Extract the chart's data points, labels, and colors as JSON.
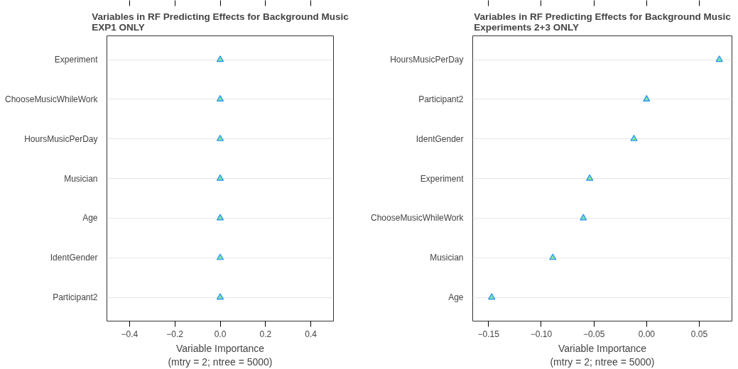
{
  "chart_data": [
    {
      "type": "scatter",
      "title": "Variables in RF Predicting Effects for Background Music\nEXP1 ONLY",
      "xlabel": "Variable Importance\n(mtry = 2; ntree = 5000)",
      "orientation": "horizontal",
      "categories": [
        "Experiment",
        "ChooseMusicWhileWork",
        "HoursMusicPerDay",
        "Musician",
        "Age",
        "IdentGender",
        "Participant2"
      ],
      "series": [
        {
          "color": "#1e90ff",
          "values": [
            0,
            0,
            0,
            0,
            0,
            0,
            0
          ]
        }
      ],
      "xlim": [
        -0.5,
        0.5
      ],
      "xticks": [
        {
          "value": -0.4,
          "label": "−0.4"
        },
        {
          "value": -0.2,
          "label": "−0.2"
        },
        {
          "value": 0,
          "label": "0.0"
        },
        {
          "value": 0.2,
          "label": "0.2"
        },
        {
          "value": 0.4,
          "label": "0.4"
        }
      ],
      "grid": "y",
      "marker": "triangle"
    },
    {
      "type": "scatter",
      "title": "Variables in RF Predicting Effects for Background Music\nExperiments 2+3 ONLY",
      "xlabel": "Variable Importance\n(mtry = 2; ntree = 5000)",
      "orientation": "horizontal",
      "categories": [
        "HoursMusicPerDay",
        "Participant2",
        "IdentGender",
        "Experiment",
        "ChooseMusicWhileWork",
        "Musician",
        "Age"
      ],
      "series": [
        {
          "color": "#1e90ff",
          "values": [
            0.069,
            0.0,
            -0.012,
            -0.054,
            -0.06,
            -0.089,
            -0.147
          ]
        }
      ],
      "xlim": [
        -0.165,
        0.081
      ],
      "xticks": [
        {
          "value": -0.15,
          "label": "−0.15"
        },
        {
          "value": -0.1,
          "label": "−0.10"
        },
        {
          "value": -0.05,
          "label": "−0.05"
        },
        {
          "value": 0,
          "label": "0.00"
        },
        {
          "value": 0.05,
          "label": "0.05"
        }
      ],
      "grid": "y",
      "marker": "triangle"
    }
  ]
}
